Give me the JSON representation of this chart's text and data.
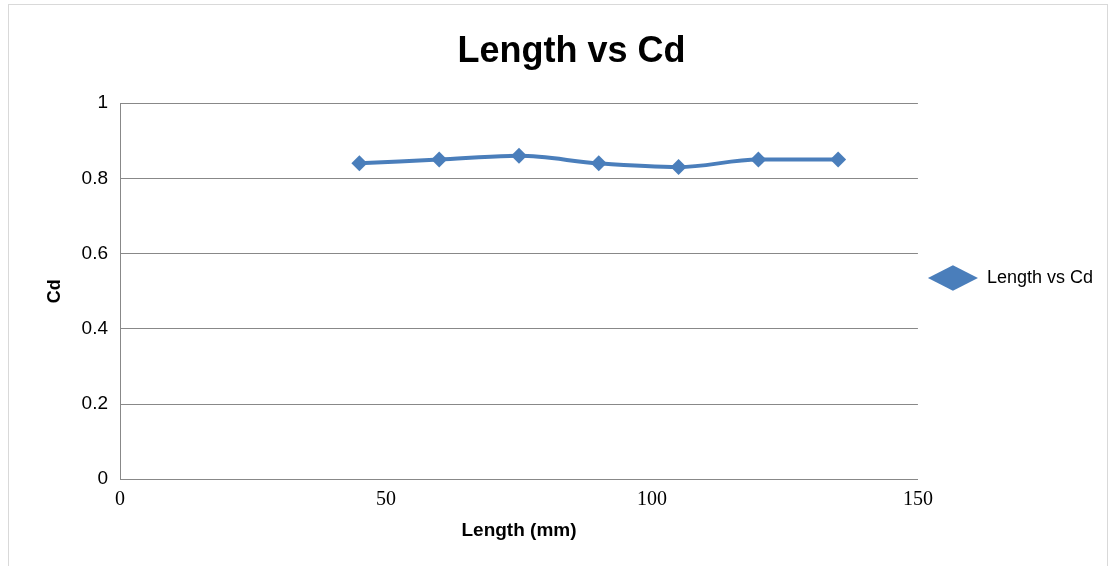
{
  "chart_data": {
    "type": "line",
    "title": "Length vs Cd",
    "xlabel": "Length (mm)",
    "ylabel": "Cd",
    "x": [
      45,
      60,
      75,
      90,
      105,
      120,
      135
    ],
    "series": [
      {
        "name": "Length vs Cd",
        "color": "#4a7ebb",
        "values": [
          0.84,
          0.85,
          0.86,
          0.84,
          0.83,
          0.85,
          0.85
        ]
      }
    ],
    "xlim": [
      0,
      150
    ],
    "xticks": [
      0,
      50,
      100,
      150
    ],
    "ylim": [
      0,
      1
    ],
    "yticks": [
      0,
      0.2,
      0.4,
      0.6,
      0.8,
      1
    ],
    "grid": "y",
    "legend": "right",
    "marker": "diamond",
    "line_style": "solid"
  }
}
